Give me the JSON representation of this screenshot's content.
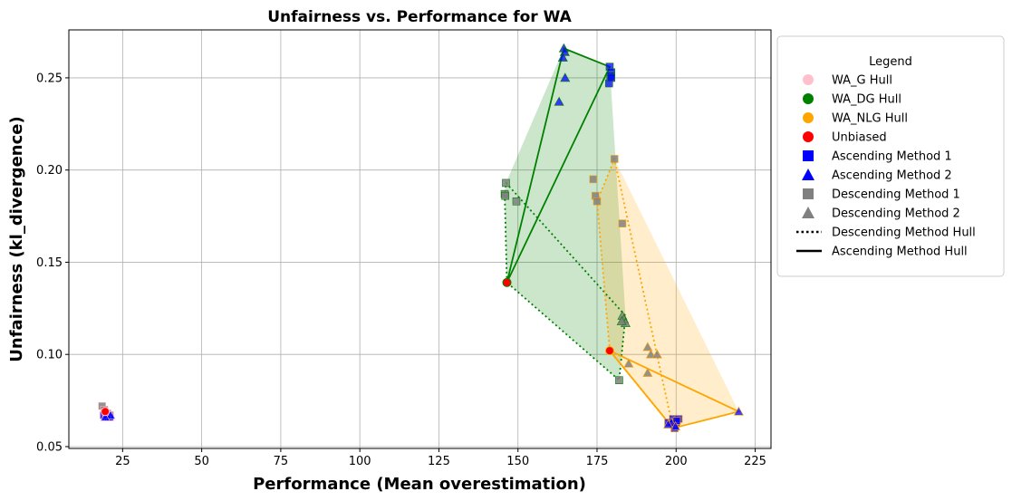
{
  "chart_data": {
    "type": "scatter",
    "title": "Unfairness vs. Performance for WA",
    "xlabel": "Performance (Mean overestimation)",
    "ylabel": "Unfairness (kl_divergence)",
    "xlim": [
      8,
      230
    ],
    "ylim": [
      0.049,
      0.276
    ],
    "xticks": [
      25,
      50,
      75,
      100,
      125,
      150,
      175,
      200,
      225
    ],
    "yticks": [
      0.05,
      0.1,
      0.15,
      0.2,
      0.25
    ],
    "xtick_labels": [
      "25",
      "50",
      "75",
      "100",
      "125",
      "150",
      "175",
      "200",
      "225"
    ],
    "ytick_labels": [
      "0.05",
      "0.10",
      "0.15",
      "0.20",
      "0.25"
    ],
    "grid": true,
    "legend": {
      "title": "Legend",
      "placement": "outside-right-top",
      "entries": [
        {
          "label": "WA_G Hull",
          "marker": "circle",
          "color": "#ffc0cb"
        },
        {
          "label": "WA_DG Hull",
          "marker": "circle",
          "color": "#008000"
        },
        {
          "label": "WA_NLG Hull",
          "marker": "circle",
          "color": "#ffa500"
        },
        {
          "label": "Unbiased",
          "marker": "circle",
          "color": "#ff0000"
        },
        {
          "label": "Ascending Method 1",
          "marker": "square",
          "color": "#0000ff"
        },
        {
          "label": "Ascending Method 2",
          "marker": "triangle",
          "color": "#0000ff"
        },
        {
          "label": "Descending Method 1",
          "marker": "square",
          "color": "#808080"
        },
        {
          "label": "Descending Method 2",
          "marker": "triangle",
          "color": "#808080"
        },
        {
          "label": "Descending Method Hull",
          "marker": "dotted-line",
          "color": "#000000"
        },
        {
          "label": "Ascending Method Hull",
          "marker": "solid-line",
          "color": "#000000"
        }
      ]
    },
    "groups": [
      {
        "name": "WA_G",
        "color": "#ffc0cb",
        "unbiased": [
          [
            19.5,
            0.069
          ]
        ],
        "ascending_method_1": [
          [
            19.0,
            0.067
          ],
          [
            19.8,
            0.066
          ],
          [
            20.5,
            0.066
          ],
          [
            21.0,
            0.066
          ],
          [
            20.2,
            0.067
          ]
        ],
        "ascending_method_2": [
          [
            20.0,
            0.067
          ],
          [
            21.2,
            0.067
          ],
          [
            19.5,
            0.066
          ]
        ],
        "descending_method_1": [
          [
            18.5,
            0.072
          ],
          [
            19.2,
            0.07
          ],
          [
            20.2,
            0.068
          ],
          [
            21.0,
            0.067
          ]
        ],
        "descending_method_2": [
          [
            19.5,
            0.068
          ],
          [
            20.5,
            0.067
          ]
        ],
        "ascending_hull": [],
        "descending_hull": []
      },
      {
        "name": "WA_DG",
        "color": "#008000",
        "unbiased": [
          [
            146.5,
            0.139
          ]
        ],
        "ascending_method_1": [
          [
            179.0,
            0.256
          ],
          [
            179.5,
            0.253
          ],
          [
            179.2,
            0.251
          ],
          [
            178.8,
            0.247
          ],
          [
            179.5,
            0.25
          ]
        ],
        "ascending_method_2": [
          [
            164.5,
            0.266
          ],
          [
            164.8,
            0.264
          ],
          [
            164.2,
            0.261
          ],
          [
            164.9,
            0.25
          ],
          [
            163.0,
            0.237
          ]
        ],
        "descending_method_1": [
          [
            145.8,
            0.187
          ],
          [
            146.0,
            0.186
          ],
          [
            146.2,
            0.193
          ],
          [
            149.5,
            0.183
          ],
          [
            182.0,
            0.086
          ]
        ],
        "descending_method_2": [
          [
            183.0,
            0.121
          ],
          [
            183.5,
            0.119
          ],
          [
            184.0,
            0.117
          ],
          [
            182.8,
            0.118
          ]
        ],
        "ascending_hull": [
          [
            146.5,
            0.139
          ],
          [
            164.5,
            0.266
          ],
          [
            179.0,
            0.256
          ],
          [
            146.5,
            0.139
          ]
        ],
        "descending_hull": [
          [
            146.5,
            0.139
          ],
          [
            145.8,
            0.187
          ],
          [
            146.2,
            0.193
          ],
          [
            184.0,
            0.121
          ],
          [
            182.0,
            0.086
          ],
          [
            146.5,
            0.139
          ]
        ],
        "fill_hull": [
          [
            146.5,
            0.139
          ],
          [
            145.8,
            0.187
          ],
          [
            146.2,
            0.193
          ],
          [
            164.5,
            0.266
          ],
          [
            179.0,
            0.256
          ],
          [
            184.0,
            0.121
          ],
          [
            182.0,
            0.086
          ]
        ]
      },
      {
        "name": "WA_NLG",
        "color": "#ffa500",
        "unbiased": [
          [
            179.0,
            0.102
          ]
        ],
        "ascending_method_1": [
          [
            197.5,
            0.063
          ],
          [
            199.0,
            0.065
          ],
          [
            200.0,
            0.063
          ],
          [
            199.5,
            0.06
          ],
          [
            200.8,
            0.065
          ],
          [
            200.2,
            0.064
          ]
        ],
        "ascending_method_2": [
          [
            219.8,
            0.069
          ],
          [
            198.5,
            0.063
          ],
          [
            199.8,
            0.061
          ],
          [
            197.5,
            0.062
          ]
        ],
        "descending_method_1": [
          [
            180.5,
            0.206
          ],
          [
            173.8,
            0.195
          ],
          [
            174.5,
            0.186
          ],
          [
            175.0,
            0.183
          ],
          [
            183.0,
            0.171
          ]
        ],
        "descending_method_2": [
          [
            191.0,
            0.104
          ],
          [
            192.0,
            0.1
          ],
          [
            194.0,
            0.1
          ],
          [
            185.0,
            0.095
          ],
          [
            191.0,
            0.09
          ]
        ],
        "ascending_hull": [
          [
            179.0,
            0.102
          ],
          [
            199.0,
            0.06
          ],
          [
            219.8,
            0.069
          ],
          [
            179.0,
            0.102
          ]
        ],
        "descending_hull": [
          [
            179.0,
            0.102
          ],
          [
            175.0,
            0.183
          ],
          [
            180.5,
            0.206
          ],
          [
            199.0,
            0.06
          ],
          [
            179.0,
            0.102
          ]
        ],
        "fill_hull": [
          [
            179.0,
            0.102
          ],
          [
            175.0,
            0.183
          ],
          [
            180.5,
            0.206
          ],
          [
            219.8,
            0.069
          ],
          [
            199.0,
            0.06
          ]
        ]
      }
    ]
  }
}
